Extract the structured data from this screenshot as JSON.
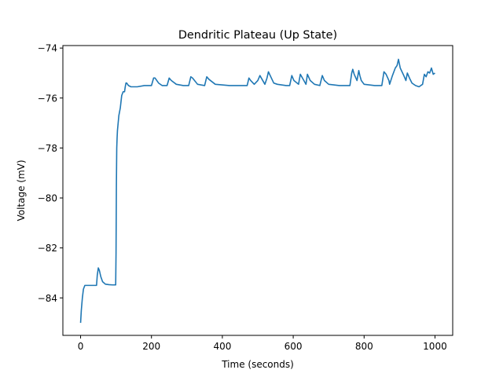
{
  "chart_data": {
    "type": "line",
    "title": "Dendritic Plateau (Up State)",
    "xlabel": "Time (seconds)",
    "ylabel": "Voltage (mV)",
    "xlim": [
      -50,
      1050
    ],
    "ylim": [
      -85.5,
      -73.9
    ],
    "xticks": [
      0,
      200,
      400,
      600,
      800,
      1000
    ],
    "yticks": [
      -84,
      -82,
      -80,
      -78,
      -76,
      -74
    ],
    "grid": false,
    "legend": "none",
    "series": [
      {
        "color": "#1f77b4",
        "x": [
          0,
          2,
          5,
          8,
          12,
          18,
          25,
          35,
          42,
          45,
          47,
          50,
          53,
          57,
          62,
          70,
          80,
          90,
          99,
          100,
          101,
          102,
          103,
          104,
          106,
          108,
          112,
          116,
          120,
          124,
          126,
          128,
          130,
          135,
          142,
          160,
          180,
          200,
          206,
          210,
          220,
          230,
          244,
          250,
          256,
          270,
          290,
          305,
          311,
          316,
          330,
          350,
          356,
          362,
          380,
          420,
          460,
          470,
          475,
          480,
          490,
          500,
          506,
          512,
          520,
          526,
          530,
          535,
          545,
          555,
          580,
          590,
          596,
          602,
          615,
          620,
          630,
          636,
          640,
          648,
          660,
          675,
          682,
          688,
          700,
          730,
          760,
          765,
          768,
          772,
          780,
          785,
          788,
          792,
          800,
          830,
          850,
          856,
          862,
          870,
          872,
          880,
          888,
          893,
          897,
          902,
          912,
          918,
          922,
          928,
          935,
          945,
          955,
          965,
          970,
          975,
          980,
          985,
          990,
          995,
          1000
        ],
        "y": [
          -85.0,
          -84.5,
          -84.0,
          -83.65,
          -83.5,
          -83.5,
          -83.5,
          -83.5,
          -83.5,
          -83.5,
          -83.1,
          -82.8,
          -82.9,
          -83.15,
          -83.35,
          -83.45,
          -83.47,
          -83.48,
          -83.48,
          -82.2,
          -79.5,
          -78.0,
          -77.6,
          -77.3,
          -77.0,
          -76.7,
          -76.4,
          -75.9,
          -75.75,
          -75.75,
          -75.55,
          -75.4,
          -75.4,
          -75.5,
          -75.55,
          -75.55,
          -75.5,
          -75.5,
          -75.2,
          -75.2,
          -75.4,
          -75.5,
          -75.5,
          -75.2,
          -75.3,
          -75.45,
          -75.5,
          -75.5,
          -75.15,
          -75.2,
          -75.45,
          -75.5,
          -75.15,
          -75.25,
          -75.45,
          -75.5,
          -75.5,
          -75.5,
          -75.2,
          -75.3,
          -75.45,
          -75.3,
          -75.1,
          -75.25,
          -75.45,
          -75.2,
          -74.95,
          -75.1,
          -75.4,
          -75.45,
          -75.5,
          -75.5,
          -75.1,
          -75.3,
          -75.45,
          -75.05,
          -75.3,
          -75.45,
          -75.05,
          -75.3,
          -75.45,
          -75.5,
          -75.1,
          -75.3,
          -75.45,
          -75.5,
          -75.5,
          -75.0,
          -74.85,
          -75.05,
          -75.3,
          -74.9,
          -75.1,
          -75.3,
          -75.45,
          -75.5,
          -75.5,
          -74.95,
          -75.05,
          -75.3,
          -75.45,
          -75.1,
          -74.8,
          -74.7,
          -74.45,
          -74.8,
          -75.1,
          -75.3,
          -75.0,
          -75.2,
          -75.4,
          -75.5,
          -75.55,
          -75.45,
          -75.05,
          -75.15,
          -74.95,
          -75.0,
          -74.8,
          -75.05,
          -75.0
        ]
      }
    ]
  }
}
